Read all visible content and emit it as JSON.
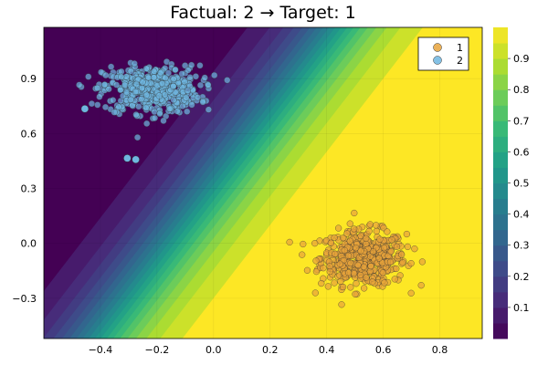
{
  "chart_data": {
    "type": "scatter",
    "title": "Factual: 2 → Target: 1",
    "xlim": [
      -0.6,
      0.95
    ],
    "ylim": [
      -0.52,
      1.18
    ],
    "x_ticks": [
      -0.4,
      -0.2,
      0.0,
      0.2,
      0.4,
      0.6,
      0.8
    ],
    "x_tick_labels": [
      "−0.4",
      "−0.2",
      "0.0",
      "0.2",
      "0.4",
      "0.6",
      "0.8"
    ],
    "y_ticks": [
      -0.3,
      0.0,
      0.3,
      0.6,
      0.9
    ],
    "y_tick_labels": [
      "−0.3",
      "0.0",
      "0.3",
      "0.6",
      "0.9"
    ],
    "contour": {
      "colormap": "viridis",
      "levels": [
        0.0,
        0.05,
        0.1,
        0.15,
        0.2,
        0.25,
        0.3,
        0.35,
        0.4,
        0.45,
        0.5,
        0.55,
        0.6,
        0.65,
        0.7,
        0.75,
        0.8,
        0.85,
        0.9,
        0.95,
        1.0
      ],
      "colorbar_ticks": [
        0.1,
        0.2,
        0.3,
        0.4,
        0.5,
        0.6,
        0.7,
        0.8,
        0.9
      ],
      "colorbar_tick_labels": [
        "0.1",
        "0.2",
        "0.3",
        "0.4",
        "0.5",
        "0.6",
        "0.7",
        "0.8",
        "0.9"
      ]
    },
    "legend": {
      "position": "top-right",
      "entries": [
        "1",
        "2"
      ]
    },
    "series": [
      {
        "name": "1",
        "color": "#e7a33b",
        "cluster_center": [
          0.53,
          -0.08
        ],
        "cluster_spread": [
          0.075,
          0.075
        ],
        "count": 500
      },
      {
        "name": "2",
        "color": "#6fb6e0",
        "cluster_center": [
          -0.22,
          0.84
        ],
        "cluster_spread": [
          0.085,
          0.065
        ],
        "count": 500
      }
    ],
    "highlighted_points": [
      {
        "series": "2",
        "x": -0.455,
        "y": 0.735
      },
      {
        "series": "2",
        "x": -0.305,
        "y": 0.465
      },
      {
        "series": "2",
        "x": -0.275,
        "y": 0.458
      }
    ]
  }
}
